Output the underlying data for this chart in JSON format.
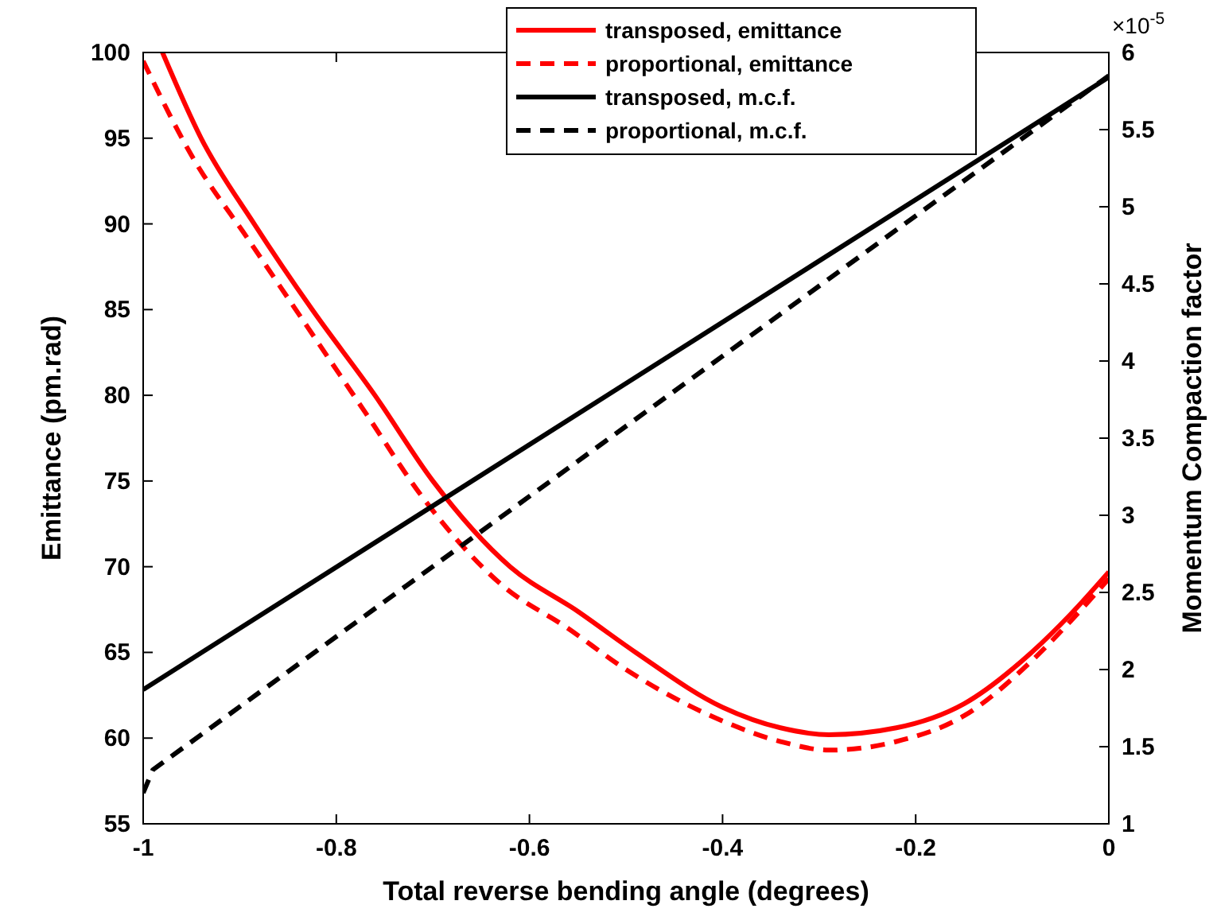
{
  "chart_data": {
    "type": "line",
    "xlabel": "Total reverse bending angle (degrees)",
    "ylabel": "Emittance (pm.rad)",
    "y2label": "Momentum Compaction factor",
    "xlim": [
      -1,
      0
    ],
    "xticks": [
      -1,
      -0.8,
      -0.6,
      -0.4,
      -0.2,
      0
    ],
    "ylim": [
      55,
      100
    ],
    "yticks": [
      55,
      60,
      65,
      70,
      75,
      80,
      85,
      90,
      95,
      100
    ],
    "y2lim": [
      1,
      6
    ],
    "y2ticks": [
      1,
      1.5,
      2,
      2.5,
      3,
      3.5,
      4,
      4.5,
      5,
      5.5,
      6
    ],
    "annotations": [
      "×10$^{-5}$"
    ],
    "legend": "top",
    "series": [
      {
        "name": "transposed, emittance",
        "color": "#ff0000",
        "line_style": "solid",
        "x": [
          -0.98,
          -0.94,
          -0.885,
          -0.825,
          -0.76,
          -0.7,
          -0.62,
          -0.55,
          -0.49,
          -0.4,
          -0.34,
          -0.29,
          -0.22,
          -0.15,
          -0.08,
          -0.04,
          0
        ],
        "values": [
          100,
          95,
          90,
          85,
          80,
          75,
          70,
          67.4,
          65,
          61.8,
          60.6,
          60.2,
          60.6,
          62,
          65,
          67.2,
          69.7
        ]
      },
      {
        "name": "proportional, emittance",
        "color": "#ff0000",
        "line_style": "dashed",
        "x": [
          -1,
          -0.95,
          -0.89,
          -0.83,
          -0.77,
          -0.71,
          -0.63,
          -0.56,
          -0.5,
          -0.4,
          -0.34,
          -0.29,
          -0.22,
          -0.15,
          -0.08,
          -0.04,
          0
        ],
        "values": [
          99.5,
          94,
          89,
          84,
          79,
          74,
          69,
          66.4,
          64,
          61,
          59.8,
          59.3,
          59.8,
          61.3,
          64.5,
          66.8,
          69.3
        ]
      },
      {
        "name": "transposed, m.c.f.",
        "color": "#000000",
        "line_style": "solid",
        "axis": "y2",
        "x": [
          -1,
          0
        ],
        "values": [
          1.87,
          5.84
        ]
      },
      {
        "name": "proportional, m.c.f.",
        "color": "#000000",
        "line_style": "dashed",
        "axis": "y2",
        "x": [
          -1,
          -0.99,
          0
        ],
        "values": [
          1.2,
          1.35,
          5.85
        ]
      }
    ]
  }
}
